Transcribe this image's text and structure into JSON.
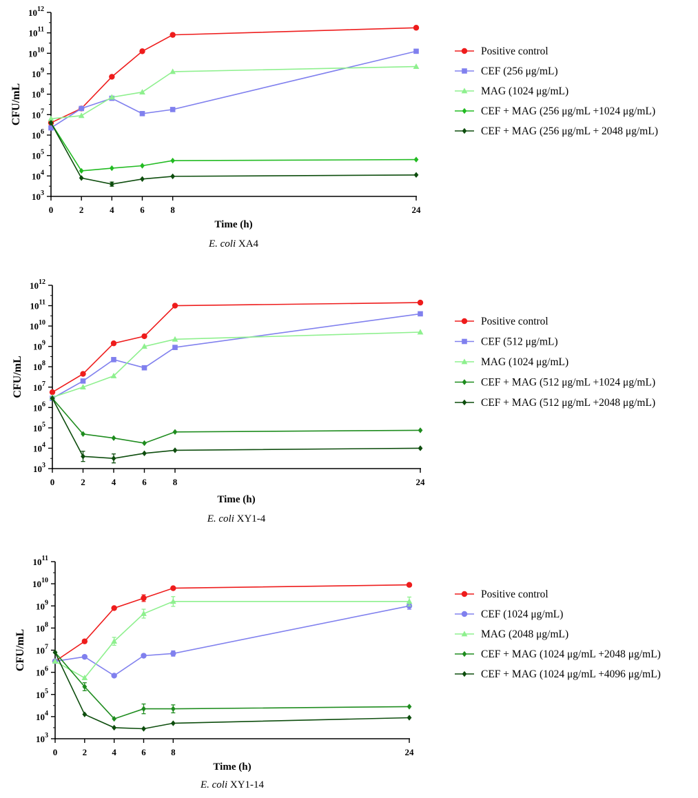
{
  "chart_data": [
    {
      "type": "line",
      "title": "E. coli XA4",
      "caption_italic": "E. coli",
      "caption_strain": "XA4",
      "xlabel": "Time (h)",
      "ylabel": "CFU/mL",
      "xticks": [
        0,
        2,
        4,
        6,
        8,
        24
      ],
      "ylim_log10": [
        3,
        12
      ],
      "legend_position": "right",
      "series": [
        {
          "name": "Positive control",
          "color": "#ee1c1c",
          "marker": "circle",
          "x": [
            0,
            2,
            4,
            6,
            8,
            24
          ],
          "log10": [
            6.6,
            7.3,
            8.85,
            10.1,
            10.9,
            11.25
          ],
          "err": [
            0,
            0,
            0,
            0,
            0,
            0
          ]
        },
        {
          "name": "CEF (256 μg/mL)",
          "color": "#8080ee",
          "marker": "square",
          "x": [
            0,
            2,
            4,
            6,
            8,
            24
          ],
          "log10": [
            6.35,
            7.3,
            7.8,
            7.05,
            7.25,
            10.1
          ],
          "err": [
            0,
            0,
            0,
            0,
            0,
            0
          ]
        },
        {
          "name": "MAG (1024 μg/mL)",
          "color": "#8ef08e",
          "marker": "triangle",
          "x": [
            0,
            2,
            4,
            6,
            8,
            24
          ],
          "log10": [
            6.8,
            6.95,
            7.85,
            8.1,
            9.1,
            9.35
          ],
          "err": [
            0,
            0,
            0,
            0,
            0,
            0
          ]
        },
        {
          "name": "CEF + MAG (256 μg/mL +1024 μg/mL)",
          "color": "#22bb22",
          "marker": "diamond",
          "x": [
            0,
            2,
            4,
            6,
            8,
            24
          ],
          "log10": [
            6.6,
            4.25,
            4.38,
            4.5,
            4.75,
            4.8
          ],
          "err": [
            0,
            0,
            0,
            0,
            0,
            0
          ]
        },
        {
          "name": "CEF + MAG (256 μg/mL + 2048 μg/mL)",
          "color": "#0d4d0d",
          "marker": "diamond",
          "x": [
            0,
            2,
            4,
            6,
            8,
            24
          ],
          "log10": [
            6.6,
            3.9,
            3.6,
            3.85,
            3.98,
            4.05
          ],
          "err": [
            0,
            0,
            0.1,
            0,
            0,
            0
          ]
        }
      ]
    },
    {
      "type": "line",
      "title": "E. coli XY1-4",
      "caption_italic": "E. coli",
      "caption_strain": "XY1-4",
      "xlabel": "Time (h)",
      "ylabel": "CFU/mL",
      "xticks": [
        0,
        2,
        4,
        6,
        8,
        24
      ],
      "ylim_log10": [
        3,
        12
      ],
      "legend_position": "right",
      "series": [
        {
          "name": "Positive control",
          "color": "#ee1c1c",
          "marker": "circle",
          "x": [
            0,
            2,
            4,
            6,
            8,
            24
          ],
          "log10": [
            6.75,
            7.65,
            9.15,
            9.5,
            11.0,
            11.15
          ],
          "err": [
            0,
            0,
            0,
            0,
            0,
            0
          ]
        },
        {
          "name": "CEF (512 μg/mL)",
          "color": "#8080ee",
          "marker": "square",
          "x": [
            0,
            2,
            4,
            6,
            8,
            24
          ],
          "log10": [
            6.45,
            7.3,
            8.35,
            7.95,
            8.95,
            10.6
          ],
          "err": [
            0,
            0,
            0.1,
            0,
            0,
            0
          ]
        },
        {
          "name": "MAG (1024 μg/mL)",
          "color": "#8ef08e",
          "marker": "triangle",
          "x": [
            0,
            2,
            4,
            6,
            8,
            24
          ],
          "log10": [
            6.5,
            7.0,
            7.55,
            9.0,
            9.35,
            9.7
          ],
          "err": [
            0,
            0,
            0,
            0,
            0,
            0
          ]
        },
        {
          "name": "CEF + MAG (512 μg/mL +1024 μg/mL)",
          "color": "#1e8c1e",
          "marker": "diamond",
          "x": [
            0,
            2,
            4,
            6,
            8,
            24
          ],
          "log10": [
            6.45,
            4.7,
            4.5,
            4.25,
            4.8,
            4.88
          ],
          "err": [
            0,
            0,
            0,
            0,
            0,
            0
          ]
        },
        {
          "name": "CEF + MAG (512 μg/mL +2048 μg/mL)",
          "color": "#0d4d0d",
          "marker": "diamond",
          "x": [
            0,
            2,
            4,
            6,
            8,
            24
          ],
          "log10": [
            6.45,
            3.6,
            3.5,
            3.75,
            3.9,
            4.0
          ],
          "err": [
            0,
            0.25,
            0.22,
            0,
            0,
            0
          ]
        }
      ]
    },
    {
      "type": "line",
      "title": "E. coli XY1-14",
      "caption_italic": "E. coli",
      "caption_strain": "XY1-14",
      "xlabel": "Time (h)",
      "ylabel": "CFU/mL",
      "xticks": [
        0,
        2,
        4,
        6,
        8,
        24
      ],
      "ylim_log10": [
        3,
        11
      ],
      "legend_position": "right",
      "series": [
        {
          "name": "Positive control",
          "color": "#ee1c1c",
          "marker": "circle",
          "x": [
            0,
            2,
            4,
            6,
            8,
            24
          ],
          "log10": [
            6.5,
            7.4,
            8.9,
            9.35,
            9.8,
            9.95
          ],
          "err": [
            0,
            0,
            0,
            0.15,
            0,
            0
          ]
        },
        {
          "name": "CEF (1024 μg/mL)",
          "color": "#8080ee",
          "marker": "circle",
          "x": [
            0,
            2,
            4,
            6,
            8,
            24
          ],
          "log10": [
            6.5,
            6.7,
            5.85,
            6.75,
            6.85,
            9.0
          ],
          "err": [
            0,
            0,
            0,
            0,
            0.12,
            0.15
          ]
        },
        {
          "name": "MAG (2048 μg/mL)",
          "color": "#8ef08e",
          "marker": "triangle",
          "x": [
            0,
            2,
            4,
            6,
            8,
            24
          ],
          "log10": [
            6.5,
            5.75,
            7.4,
            8.65,
            9.2,
            9.2
          ],
          "err": [
            0,
            0,
            0.18,
            0.2,
            0.22,
            0.2
          ]
        },
        {
          "name": "CEF + MAG (1024 μg/mL +2048 μg/mL)",
          "color": "#1e8c1e",
          "marker": "diamond",
          "x": [
            0,
            2,
            4,
            6,
            8,
            24
          ],
          "log10": [
            6.9,
            5.35,
            3.9,
            4.35,
            4.35,
            4.45
          ],
          "err": [
            0,
            0.18,
            0,
            0.22,
            0.18,
            0
          ]
        },
        {
          "name": "CEF + MAG (1024 μg/mL +4096 μg/mL)",
          "color": "#0d4d0d",
          "marker": "diamond",
          "x": [
            0,
            2,
            4,
            6,
            8,
            24
          ],
          "log10": [
            6.9,
            4.1,
            3.5,
            3.45,
            3.7,
            3.95
          ],
          "err": [
            0,
            0,
            0,
            0,
            0,
            0
          ]
        }
      ]
    }
  ]
}
